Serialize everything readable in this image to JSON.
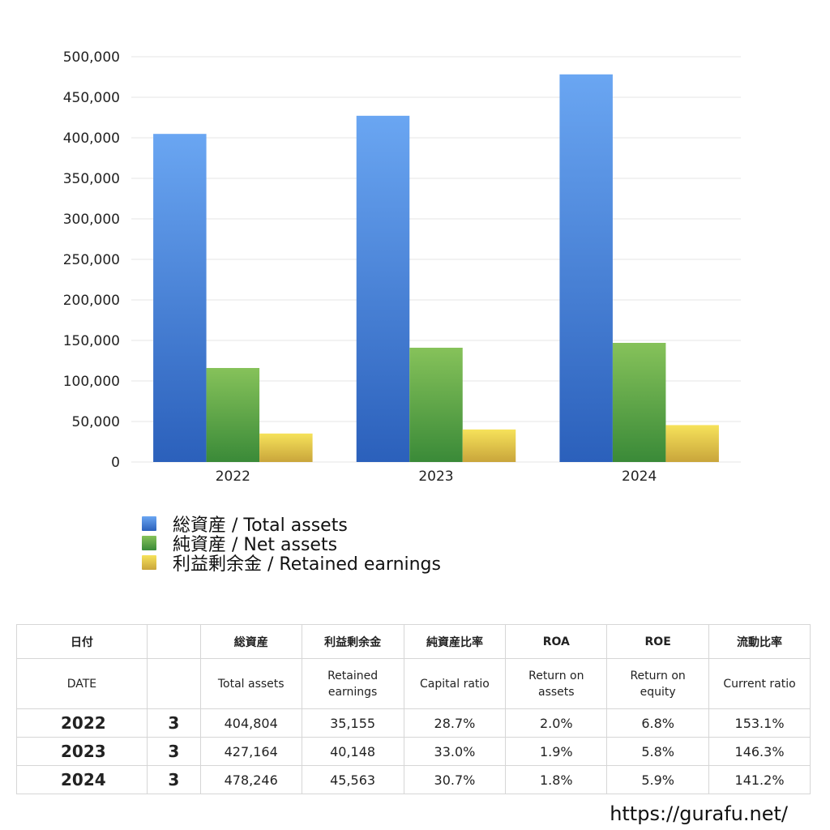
{
  "chart_data": {
    "type": "bar",
    "categories": [
      "2022",
      "2023",
      "2024"
    ],
    "series": [
      {
        "name": "総資産 / Total assets",
        "values": [
          404804,
          427164,
          478246
        ],
        "color": "#4a87e0"
      },
      {
        "name": "純資産 / Net assets",
        "values": [
          116000,
          141000,
          147000
        ],
        "color": "#5aa546"
      },
      {
        "name": "利益剰余金 / Retained earnings",
        "values": [
          35155,
          40148,
          45563
        ],
        "color": "#e6cc48"
      }
    ],
    "ylim": [
      0,
      500000
    ],
    "yticks": [
      "500,000",
      "450,000",
      "400,000",
      "350,000",
      "300,000",
      "250,000",
      "200,000",
      "150,000",
      "100,000",
      "50,000",
      "0"
    ],
    "ytick_values": [
      500000,
      450000,
      400000,
      350000,
      300000,
      250000,
      200000,
      150000,
      100000,
      50000,
      0
    ],
    "grid": true,
    "legend_position": "bottom-left"
  },
  "legend": [
    {
      "label": "総資産 / Total assets",
      "color": "blue"
    },
    {
      "label": "純資産 / Net assets",
      "color": "green"
    },
    {
      "label": "利益剰余金 / Retained earnings",
      "color": "yellow"
    }
  ],
  "table": {
    "header_jp": [
      "日付",
      "",
      "総資産",
      "利益剰余金",
      "純資産比率",
      "ROA",
      "ROE",
      "流動比率"
    ],
    "header_en": [
      "DATE",
      "",
      "Total assets",
      "Retained earnings",
      "Capital ratio",
      "Return on assets",
      "Return on equity",
      "Current ratio"
    ],
    "rows": [
      {
        "year": "2022",
        "month": "3",
        "total_assets": "404,804",
        "retained": "35,155",
        "capital_ratio": "28.7%",
        "roa": "2.0%",
        "roe": "6.8%",
        "current_ratio": "153.1%"
      },
      {
        "year": "2023",
        "month": "3",
        "total_assets": "427,164",
        "retained": "40,148",
        "capital_ratio": "33.0%",
        "roa": "1.9%",
        "roe": "5.8%",
        "current_ratio": "146.3%"
      },
      {
        "year": "2024",
        "month": "3",
        "total_assets": "478,246",
        "retained": "45,563",
        "capital_ratio": "30.7%",
        "roa": "1.8%",
        "roe": "5.9%",
        "current_ratio": "141.2%"
      }
    ]
  },
  "footer": {
    "url": "https://gurafu.net/"
  }
}
